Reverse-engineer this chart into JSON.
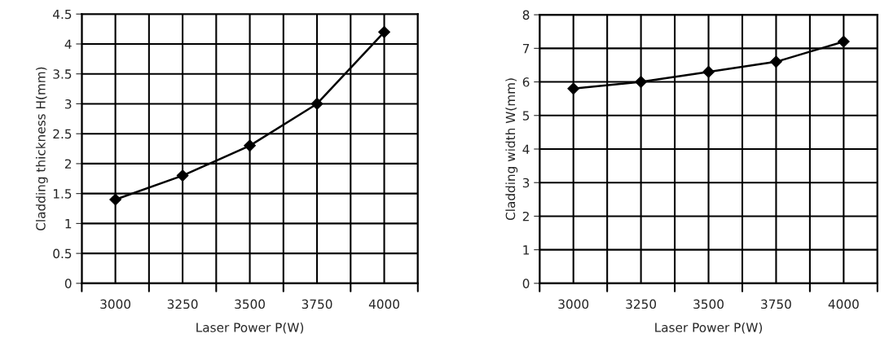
{
  "chart_data": [
    {
      "type": "line",
      "categories": [
        "3000",
        "3250",
        "3500",
        "3750",
        "4000"
      ],
      "xlabel": "Laser Power P(W)",
      "ylabel": "Cladding thickness H(mm)",
      "series": [
        {
          "color": "#000000",
          "values": [
            1.4,
            1.8,
            2.3,
            3.0,
            4.2
          ]
        }
      ],
      "ylim": [
        0,
        4.5
      ],
      "yticks": [
        0,
        0.5,
        1,
        1.5,
        2,
        2.5,
        3,
        3.5,
        4,
        4.5
      ],
      "grid": true,
      "marker": "diamond",
      "line_style": "solid",
      "legend": false
    },
    {
      "type": "line",
      "categories": [
        "3000",
        "3250",
        "3500",
        "3750",
        "4000"
      ],
      "xlabel": "Laser Power P(W)",
      "ylabel": "Cladding width W(mm)",
      "series": [
        {
          "color": "#000000",
          "values": [
            5.8,
            6.0,
            6.3,
            6.6,
            7.2
          ]
        }
      ],
      "ylim": [
        0,
        8
      ],
      "yticks": [
        0,
        1,
        2,
        3,
        4,
        5,
        6,
        7,
        8
      ],
      "grid": true,
      "marker": "diamond",
      "line_style": "solid",
      "legend": false
    }
  ]
}
